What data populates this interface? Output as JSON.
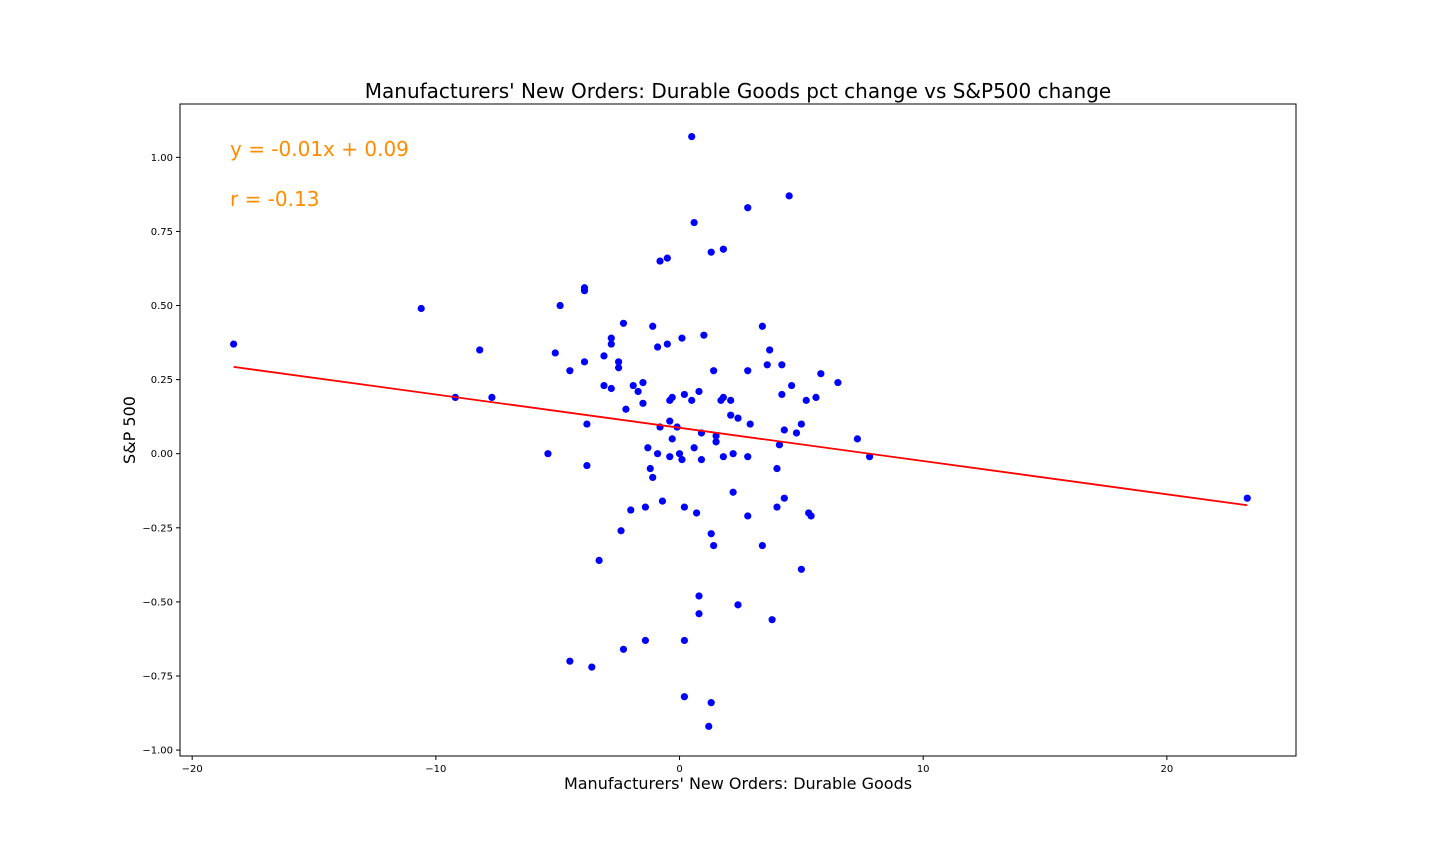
{
  "chart_data": {
    "type": "scatter",
    "title": "Manufacturers' New Orders: Durable Goods pct change vs S&P500 change",
    "xlabel": "Manufacturers' New Orders: Durable Goods",
    "ylabel": "S&P 500",
    "xlim": [
      -20.5,
      25.3
    ],
    "ylim": [
      -1.02,
      1.18
    ],
    "xticks": [
      -20,
      -10,
      0,
      10,
      20
    ],
    "xtick_labels": [
      "−20",
      "−10",
      "0",
      "10",
      "20"
    ],
    "yticks": [
      1.0,
      0.75,
      0.5,
      0.25,
      0.0,
      -0.25,
      -0.5,
      -0.75,
      -1.0
    ],
    "ytick_labels": [
      "1.00",
      "0.75",
      "0.50",
      "0.25",
      "0.00",
      "−0.25",
      "−0.50",
      "−0.75",
      "−1.00"
    ],
    "grid": false,
    "annotations": [
      "y = -0.01x + 0.09",
      "r = -0.13"
    ],
    "annotation_color": "#ff8c00",
    "point_color": "#0000ff",
    "line_color": "#ff0000",
    "regression_line": {
      "x": [
        -18.3,
        23.3
      ],
      "y": [
        0.293,
        -0.174
      ]
    },
    "points": [
      {
        "x": -18.3,
        "y": 0.37
      },
      {
        "x": -10.6,
        "y": 0.49
      },
      {
        "x": -9.2,
        "y": 0.19
      },
      {
        "x": -8.2,
        "y": 0.35
      },
      {
        "x": -7.7,
        "y": 0.19
      },
      {
        "x": -5.4,
        "y": 0.0
      },
      {
        "x": -5.1,
        "y": 0.34
      },
      {
        "x": -4.9,
        "y": 0.5
      },
      {
        "x": -4.5,
        "y": 0.28
      },
      {
        "x": -4.5,
        "y": -0.7
      },
      {
        "x": -3.9,
        "y": 0.56
      },
      {
        "x": -3.9,
        "y": 0.55
      },
      {
        "x": -3.9,
        "y": 0.31
      },
      {
        "x": -3.8,
        "y": 0.1
      },
      {
        "x": -3.8,
        "y": -0.04
      },
      {
        "x": -3.6,
        "y": -0.72
      },
      {
        "x": -3.3,
        "y": -0.36
      },
      {
        "x": -3.1,
        "y": 0.33
      },
      {
        "x": -3.1,
        "y": 0.23
      },
      {
        "x": -2.8,
        "y": 0.39
      },
      {
        "x": -2.8,
        "y": 0.37
      },
      {
        "x": -2.8,
        "y": 0.22
      },
      {
        "x": -2.5,
        "y": 0.31
      },
      {
        "x": -2.5,
        "y": 0.29
      },
      {
        "x": -2.4,
        "y": -0.26
      },
      {
        "x": -2.3,
        "y": 0.44
      },
      {
        "x": -2.3,
        "y": -0.66
      },
      {
        "x": -2.2,
        "y": 0.15
      },
      {
        "x": -2.0,
        "y": -0.19
      },
      {
        "x": -1.9,
        "y": 0.23
      },
      {
        "x": -1.7,
        "y": 0.21
      },
      {
        "x": -1.5,
        "y": 0.24
      },
      {
        "x": -1.5,
        "y": 0.17
      },
      {
        "x": -1.4,
        "y": -0.18
      },
      {
        "x": -1.4,
        "y": -0.63
      },
      {
        "x": -1.3,
        "y": 0.02
      },
      {
        "x": -1.2,
        "y": -0.05
      },
      {
        "x": -1.1,
        "y": 0.43
      },
      {
        "x": -1.1,
        "y": -0.08
      },
      {
        "x": -0.9,
        "y": 0.36
      },
      {
        "x": -0.9,
        "y": 0.0
      },
      {
        "x": -0.8,
        "y": 0.65
      },
      {
        "x": -0.8,
        "y": 0.09
      },
      {
        "x": -0.7,
        "y": -0.16
      },
      {
        "x": -0.5,
        "y": 0.66
      },
      {
        "x": -0.5,
        "y": 0.37
      },
      {
        "x": -0.4,
        "y": 0.18
      },
      {
        "x": -0.4,
        "y": 0.11
      },
      {
        "x": -0.4,
        "y": -0.01
      },
      {
        "x": -0.3,
        "y": 0.19
      },
      {
        "x": -0.3,
        "y": 0.05
      },
      {
        "x": -0.1,
        "y": 0.09
      },
      {
        "x": 0.0,
        "y": 0.0
      },
      {
        "x": 0.1,
        "y": -0.02
      },
      {
        "x": 0.1,
        "y": 0.39
      },
      {
        "x": 0.2,
        "y": 0.2
      },
      {
        "x": 0.2,
        "y": -0.18
      },
      {
        "x": 0.2,
        "y": -0.63
      },
      {
        "x": 0.2,
        "y": -0.82
      },
      {
        "x": 0.5,
        "y": 1.07
      },
      {
        "x": 0.5,
        "y": 0.18
      },
      {
        "x": 0.6,
        "y": 0.78
      },
      {
        "x": 0.6,
        "y": 0.02
      },
      {
        "x": 0.7,
        "y": -0.2
      },
      {
        "x": 0.8,
        "y": 0.21
      },
      {
        "x": 0.8,
        "y": -0.48
      },
      {
        "x": 0.8,
        "y": -0.54
      },
      {
        "x": 0.9,
        "y": 0.07
      },
      {
        "x": 0.9,
        "y": -0.02
      },
      {
        "x": 1.0,
        "y": 0.4
      },
      {
        "x": 1.2,
        "y": -0.92
      },
      {
        "x": 1.3,
        "y": 0.68
      },
      {
        "x": 1.3,
        "y": -0.84
      },
      {
        "x": 1.3,
        "y": -0.27
      },
      {
        "x": 1.4,
        "y": 0.28
      },
      {
        "x": 1.4,
        "y": -0.31
      },
      {
        "x": 1.5,
        "y": 0.06
      },
      {
        "x": 1.5,
        "y": 0.04
      },
      {
        "x": 1.7,
        "y": 0.18
      },
      {
        "x": 1.8,
        "y": 0.19
      },
      {
        "x": 1.8,
        "y": 0.69
      },
      {
        "x": 1.8,
        "y": -0.01
      },
      {
        "x": 2.1,
        "y": 0.18
      },
      {
        "x": 2.1,
        "y": 0.13
      },
      {
        "x": 2.2,
        "y": 0.0
      },
      {
        "x": 2.2,
        "y": -0.13
      },
      {
        "x": 2.4,
        "y": 0.12
      },
      {
        "x": 2.4,
        "y": -0.51
      },
      {
        "x": 2.8,
        "y": 0.83
      },
      {
        "x": 2.8,
        "y": 0.28
      },
      {
        "x": 2.8,
        "y": -0.01
      },
      {
        "x": 2.8,
        "y": -0.21
      },
      {
        "x": 2.9,
        "y": 0.1
      },
      {
        "x": 3.4,
        "y": 0.43
      },
      {
        "x": 3.4,
        "y": -0.31
      },
      {
        "x": 3.6,
        "y": 0.3
      },
      {
        "x": 3.7,
        "y": 0.35
      },
      {
        "x": 3.8,
        "y": -0.56
      },
      {
        "x": 4.0,
        "y": -0.05
      },
      {
        "x": 4.0,
        "y": -0.18
      },
      {
        "x": 4.1,
        "y": 0.03
      },
      {
        "x": 4.2,
        "y": 0.3
      },
      {
        "x": 4.2,
        "y": 0.2
      },
      {
        "x": 4.3,
        "y": 0.08
      },
      {
        "x": 4.3,
        "y": -0.15
      },
      {
        "x": 4.5,
        "y": 0.87
      },
      {
        "x": 4.6,
        "y": 0.23
      },
      {
        "x": 4.8,
        "y": 0.07
      },
      {
        "x": 5.0,
        "y": 0.1
      },
      {
        "x": 5.0,
        "y": -0.39
      },
      {
        "x": 5.2,
        "y": 0.18
      },
      {
        "x": 5.3,
        "y": -0.2
      },
      {
        "x": 5.4,
        "y": -0.21
      },
      {
        "x": 5.6,
        "y": 0.19
      },
      {
        "x": 5.8,
        "y": 0.27
      },
      {
        "x": 6.5,
        "y": 0.24
      },
      {
        "x": 7.3,
        "y": 0.05
      },
      {
        "x": 7.8,
        "y": -0.01
      },
      {
        "x": 23.3,
        "y": -0.15
      }
    ]
  }
}
